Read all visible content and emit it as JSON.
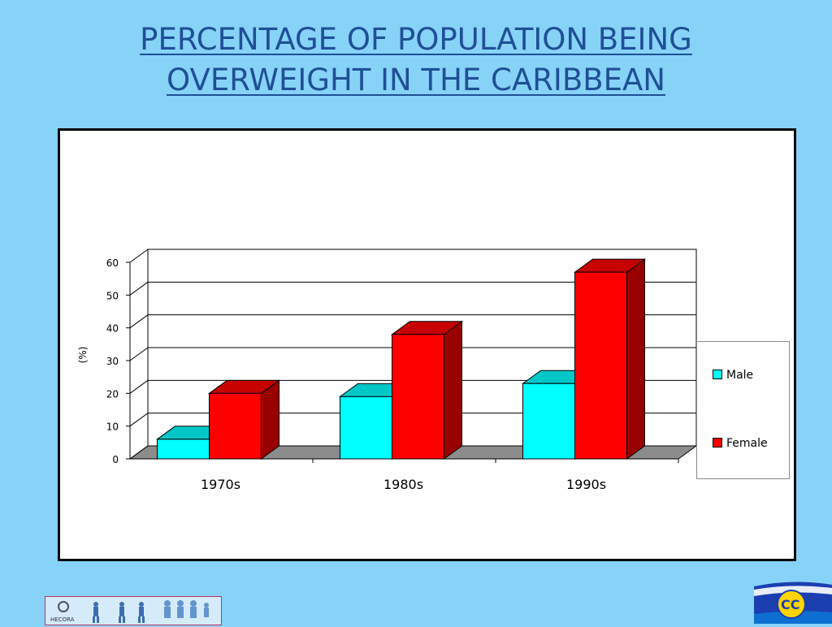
{
  "slide": {
    "title_lines": [
      "PERCENTAGE OF POPULATION BEING",
      "OVERWEIGHT IN THE CARIBBEAN"
    ]
  },
  "colors": {
    "background": "#87d3f8",
    "title": "#1f4f96",
    "male": "#00ffff",
    "female": "#ff0000",
    "floor": "#8c8c8c"
  },
  "chart_data": {
    "type": "bar",
    "categories": [
      "1970s",
      "1980s",
      "1990s"
    ],
    "series": [
      {
        "name": "Male",
        "values": [
          6,
          19,
          23
        ],
        "color": "#00ffff"
      },
      {
        "name": "Female",
        "values": [
          20,
          38,
          57
        ],
        "color": "#ff0000"
      }
    ],
    "ylabel": "(%)",
    "ylim": [
      0,
      60
    ],
    "yticks": [
      0,
      10,
      20,
      30,
      40,
      50,
      60
    ],
    "grid": true,
    "three_d": true,
    "legend_position": "right"
  },
  "logos": {
    "left_text": "HECORA"
  }
}
